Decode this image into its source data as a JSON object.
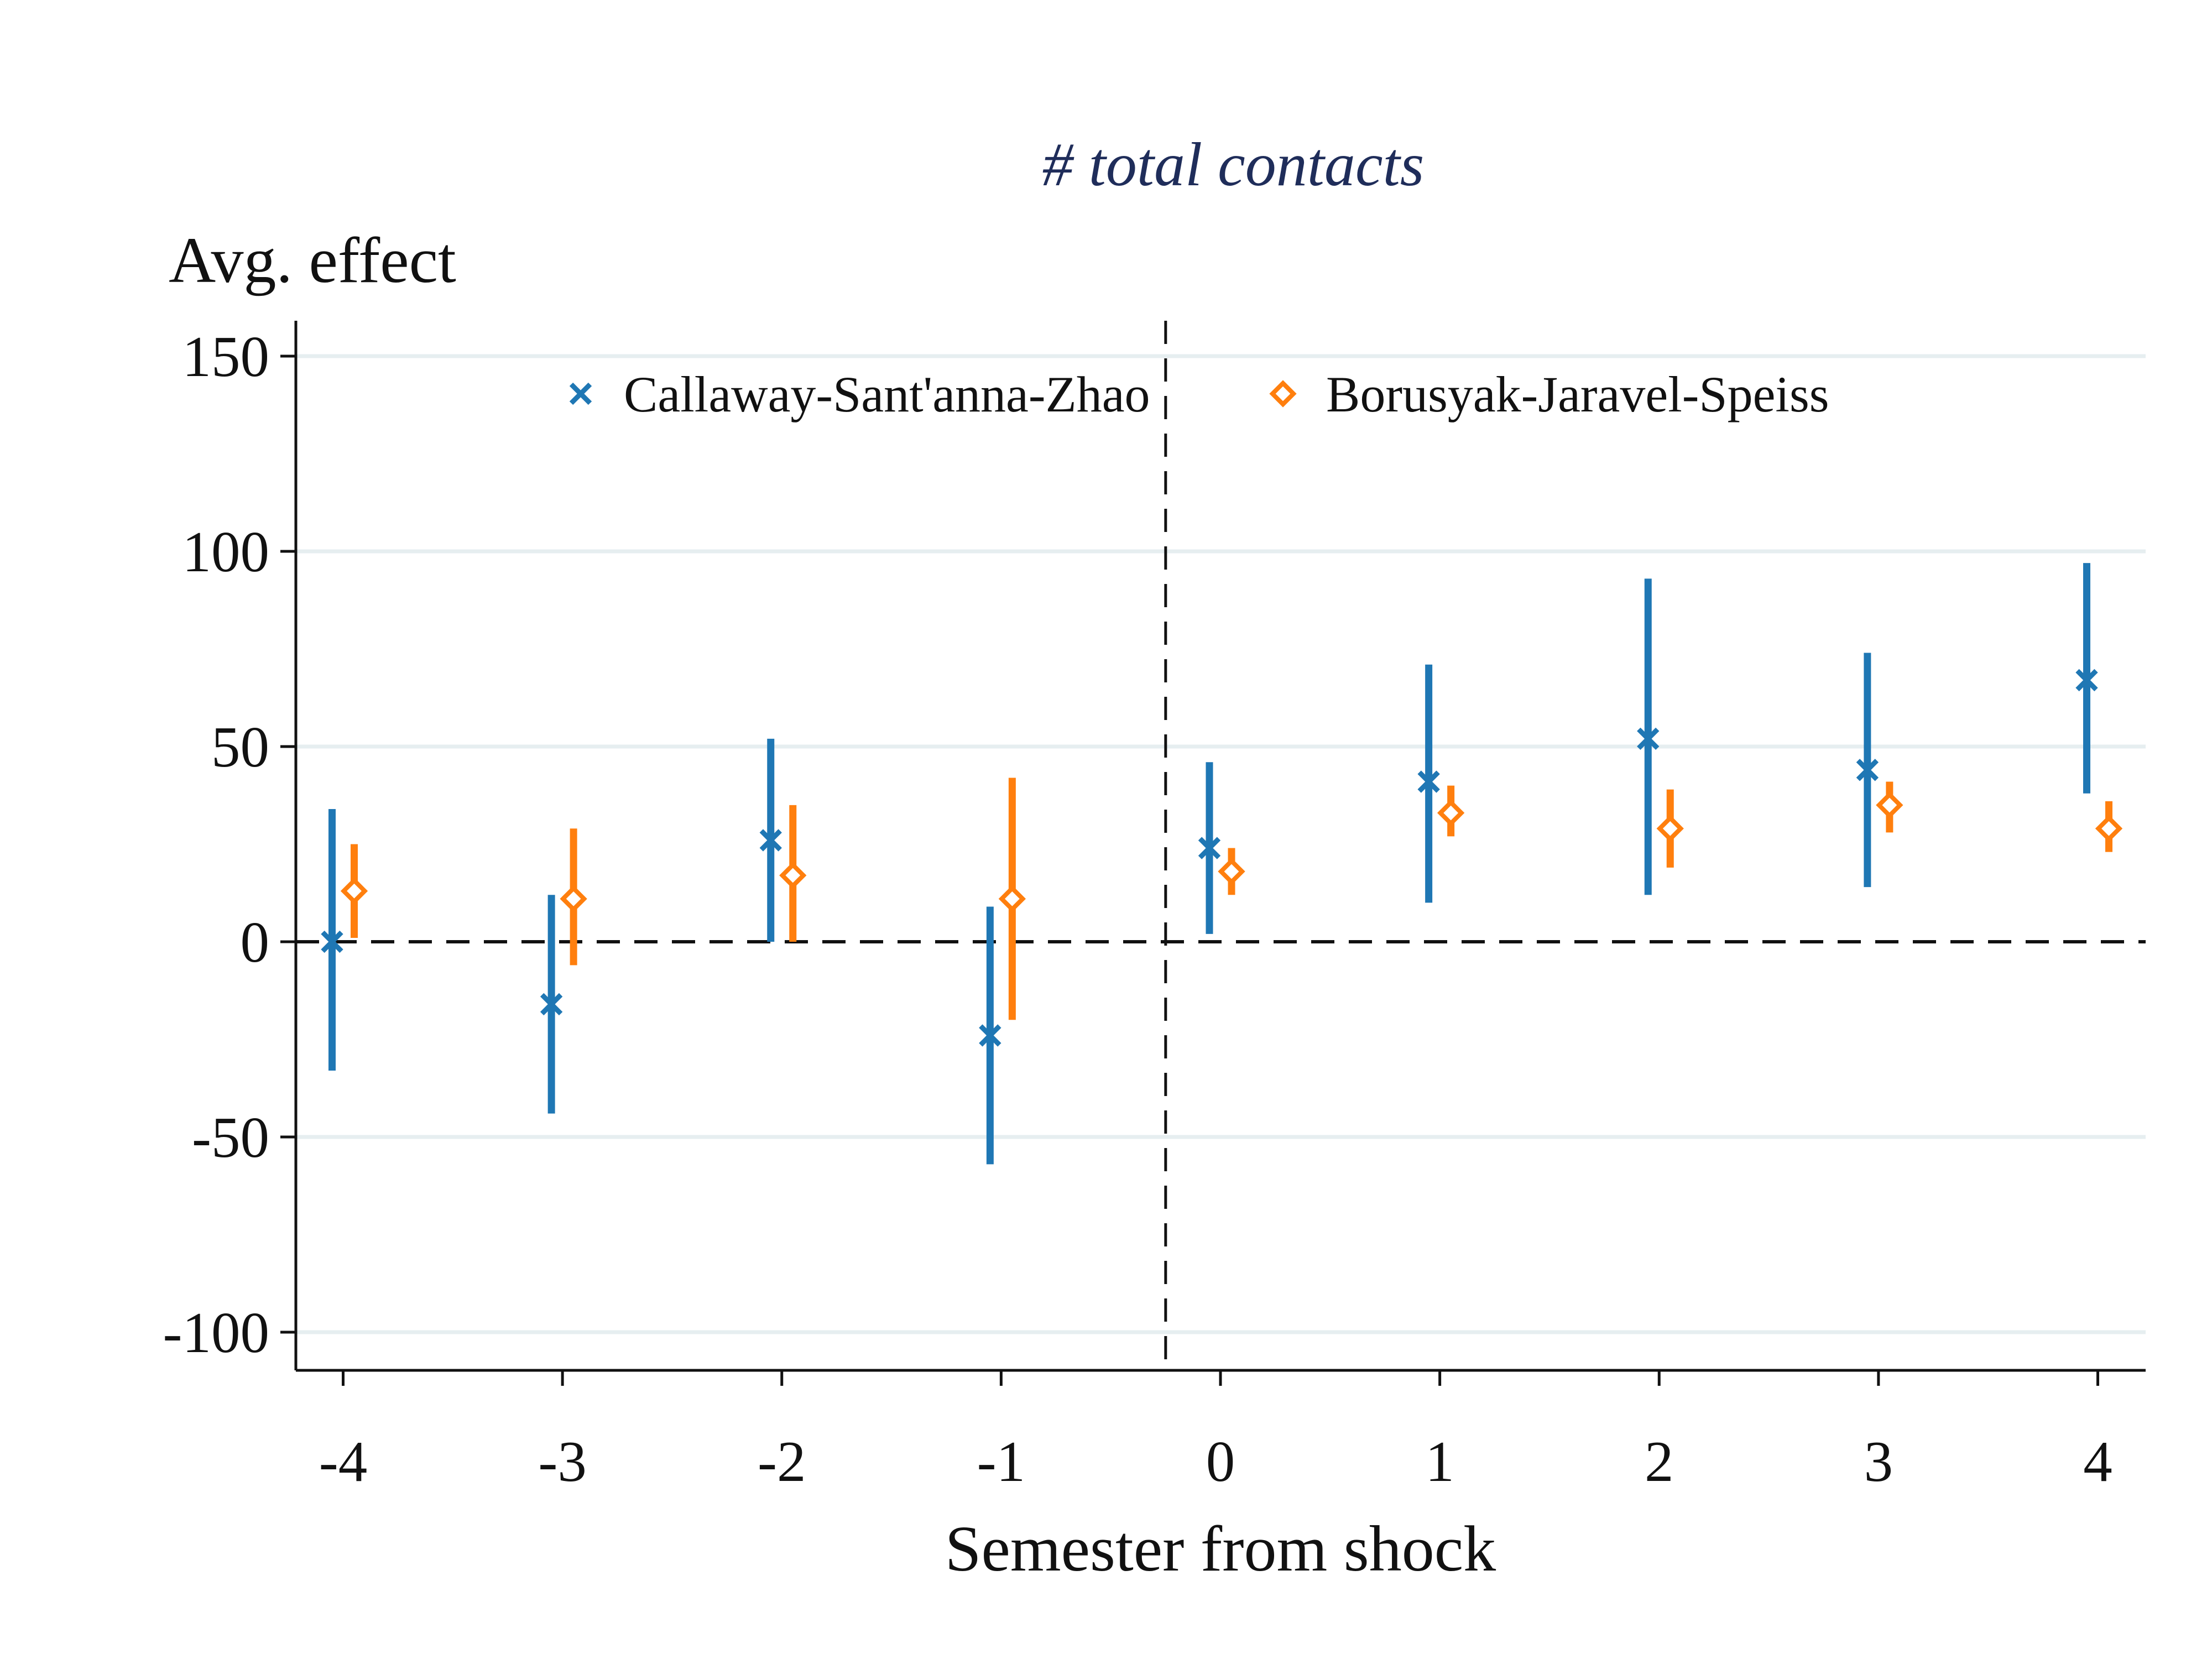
{
  "chart_data": {
    "type": "scatter",
    "title": "# total contacts",
    "xlabel": "Semester from shock",
    "ylabel": "Avg. effect",
    "x_ticks": [
      -4,
      -3,
      -2,
      -1,
      0,
      1,
      2,
      3,
      4
    ],
    "y_ticks": [
      -100,
      -50,
      0,
      50,
      100,
      150
    ],
    "xlim": [
      -4.2,
      4.2
    ],
    "ylim": [
      -110,
      160
    ],
    "grid": "horizontal",
    "reference_lines": {
      "y_zero": 0,
      "x_vertical": -0.25
    },
    "legend_position": "top",
    "series": [
      {
        "name": "Callaway-Sant'anna-Zhao",
        "marker": "x",
        "color": "#1f77b4",
        "points": [
          {
            "x": -4,
            "y": 0,
            "lo": -33,
            "hi": 34
          },
          {
            "x": -3,
            "y": -16,
            "lo": -44,
            "hi": 12
          },
          {
            "x": -2,
            "y": 26,
            "lo": 0,
            "hi": 52
          },
          {
            "x": -1,
            "y": -24,
            "lo": -57,
            "hi": 9
          },
          {
            "x": 0,
            "y": 24,
            "lo": 2,
            "hi": 46
          },
          {
            "x": 1,
            "y": 41,
            "lo": 10,
            "hi": 71
          },
          {
            "x": 2,
            "y": 52,
            "lo": 12,
            "hi": 93
          },
          {
            "x": 3,
            "y": 44,
            "lo": 14,
            "hi": 74
          },
          {
            "x": 4,
            "y": 67,
            "lo": 38,
            "hi": 97
          }
        ]
      },
      {
        "name": "Borusyak-Jaravel-Speiss",
        "marker": "diamond",
        "color": "#ff7f0e",
        "points": [
          {
            "x": -4,
            "y": 13,
            "lo": 1,
            "hi": 25
          },
          {
            "x": -3,
            "y": 11,
            "lo": -6,
            "hi": 29
          },
          {
            "x": -2,
            "y": 17,
            "lo": 0,
            "hi": 35
          },
          {
            "x": -1,
            "y": 11,
            "lo": -20,
            "hi": 42
          },
          {
            "x": 0,
            "y": 18,
            "lo": 12,
            "hi": 24
          },
          {
            "x": 1,
            "y": 33,
            "lo": 27,
            "hi": 40
          },
          {
            "x": 2,
            "y": 29,
            "lo": 19,
            "hi": 39
          },
          {
            "x": 3,
            "y": 35,
            "lo": 28,
            "hi": 41
          },
          {
            "x": 4,
            "y": 29,
            "lo": 23,
            "hi": 36
          }
        ]
      }
    ]
  }
}
